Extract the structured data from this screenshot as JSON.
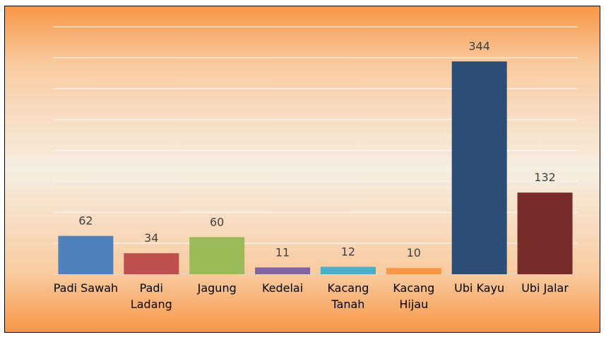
{
  "chart_data": {
    "type": "bar",
    "categories": [
      "Padi Sawah",
      "Padi Ladang",
      "Jagung",
      "Kedelai",
      "Kacang Tanah",
      "Kacang Hijau",
      "Ubi Kayu",
      "Ubi Jalar"
    ],
    "values": [
      62,
      34,
      60,
      11,
      12,
      10,
      344,
      132
    ],
    "colors": [
      "#4f81bd",
      "#c0504d",
      "#9bbb59",
      "#8064a2",
      "#4bacc6",
      "#f79646",
      "#2c4d75",
      "#772c2a"
    ],
    "ylim": [
      0,
      400
    ],
    "yticks": [
      0,
      50,
      100,
      150,
      200,
      250,
      300,
      350,
      400
    ],
    "grid": true
  }
}
